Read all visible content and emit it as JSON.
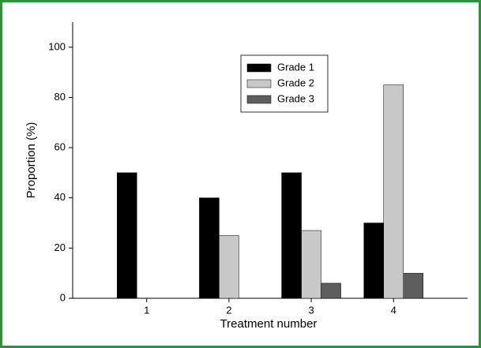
{
  "chart_data": {
    "type": "bar",
    "x_label": "Treatment number",
    "y_label": "Proportion (%)",
    "categories": [
      "1",
      "2",
      "3",
      "4"
    ],
    "series": [
      {
        "name": "Grade 1",
        "color": "#000000",
        "values": [
          50,
          40,
          50,
          30
        ]
      },
      {
        "name": "Grade 2",
        "color": "#c8c8c8",
        "values": [
          0,
          25,
          27,
          85
        ]
      },
      {
        "name": "Grade 3",
        "color": "#5e5e5e",
        "values": [
          0,
          0,
          6,
          10
        ]
      }
    ],
    "ylim": [
      0,
      110
    ],
    "yticks": [
      0,
      20,
      40,
      60,
      80,
      100
    ],
    "legend": "upper-center"
  }
}
